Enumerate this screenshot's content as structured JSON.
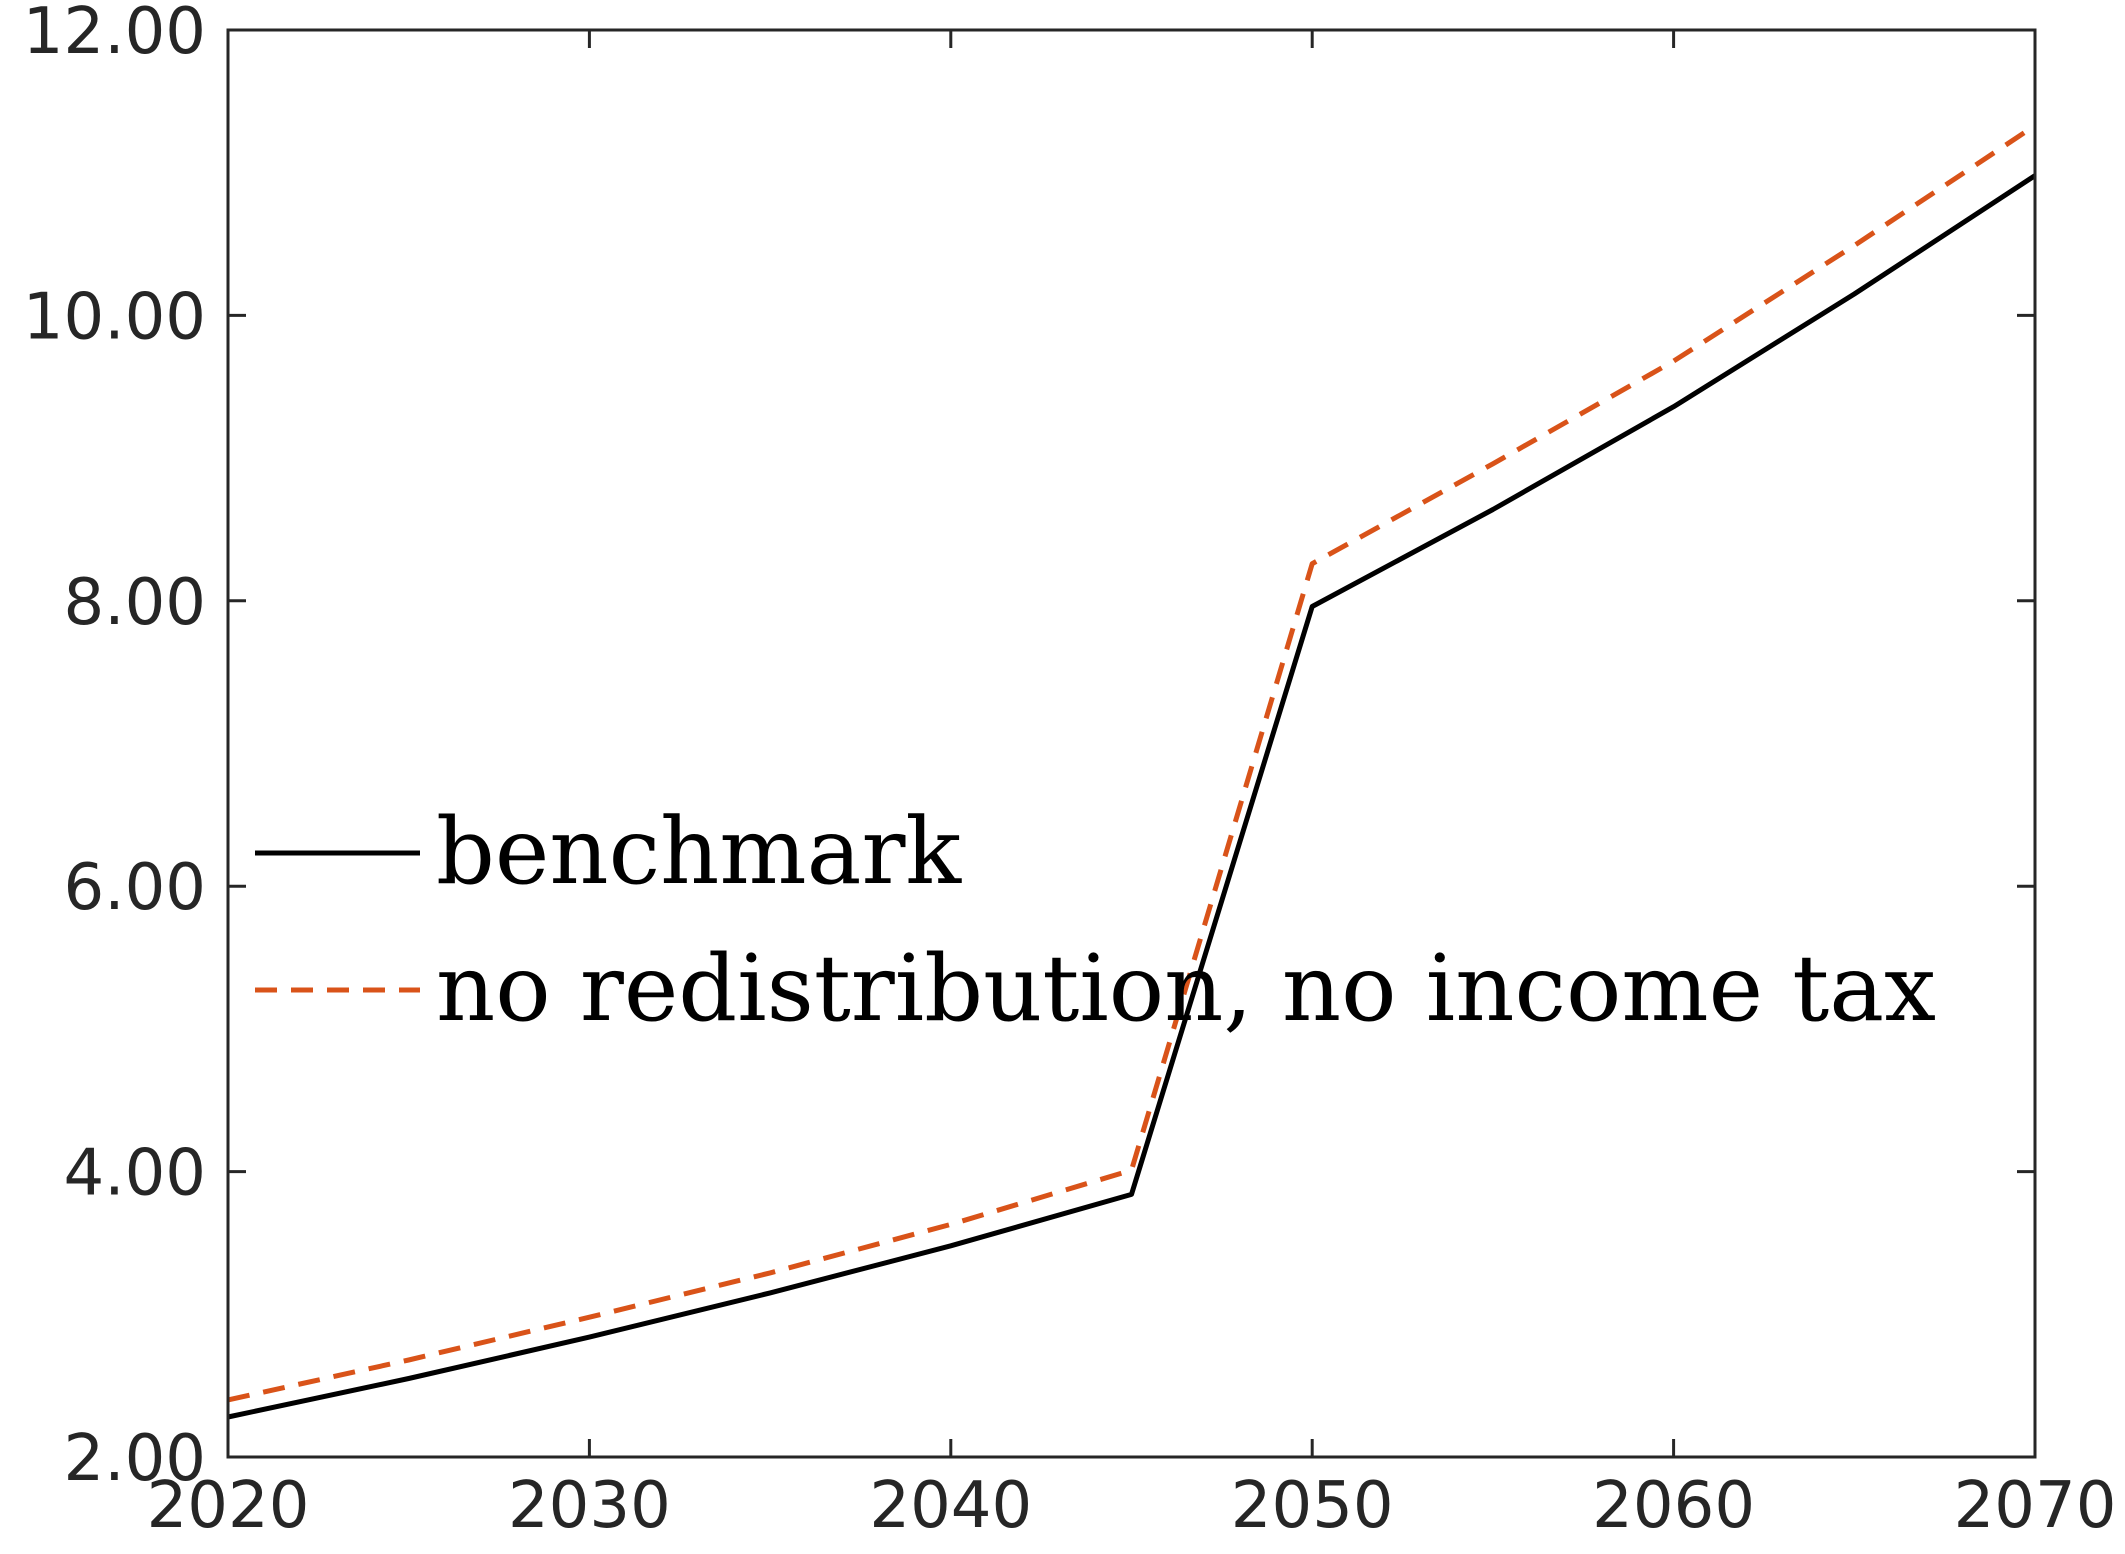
{
  "chart_data": {
    "type": "line",
    "title": "",
    "xlabel": "",
    "ylabel": "",
    "xlim": [
      2020,
      2070
    ],
    "ylim": [
      2.0,
      12.0
    ],
    "xticks": [
      "2020",
      "2030",
      "2040",
      "2050",
      "2060",
      "2070"
    ],
    "yticks": [
      "2.00",
      "4.00",
      "6.00",
      "8.00",
      "10.00",
      "12.00"
    ],
    "x": [
      2020,
      2025,
      2030,
      2035,
      2040,
      2045,
      2050,
      2055,
      2060,
      2065,
      2070
    ],
    "series": [
      {
        "name": "benchmark",
        "color": "#000000",
        "style": "solid",
        "values": [
          2.28,
          2.55,
          2.84,
          3.15,
          3.48,
          3.84,
          7.96,
          8.64,
          9.36,
          10.15,
          10.98
        ]
      },
      {
        "name": "no redistribution, no income tax",
        "color": "#D95319",
        "style": "dashed",
        "values": [
          2.4,
          2.68,
          2.98,
          3.29,
          3.63,
          4.01,
          8.26,
          8.96,
          9.68,
          10.49,
          11.33
        ]
      }
    ],
    "legend_position": "center-left",
    "grid": false
  }
}
